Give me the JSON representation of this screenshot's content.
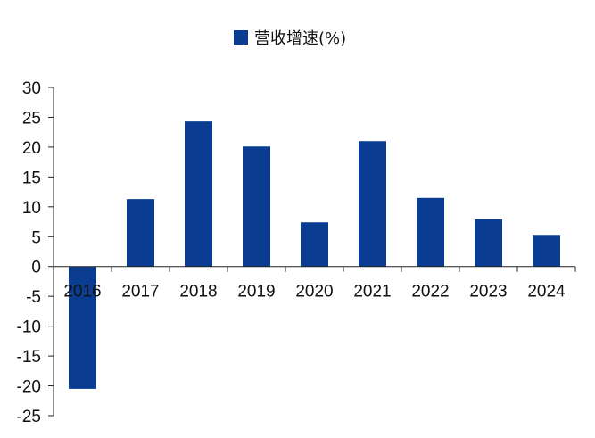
{
  "chart_data": {
    "type": "bar",
    "title": "",
    "xlabel": "",
    "ylabel": "",
    "categories": [
      "2016",
      "2017",
      "2018",
      "2019",
      "2020",
      "2021",
      "2022",
      "2023",
      "2024"
    ],
    "series": [
      {
        "name": "营收增速(%)",
        "values": [
          -20.5,
          11.3,
          24.3,
          20.1,
          7.4,
          21.0,
          11.5,
          7.9,
          5.3
        ],
        "color": "#0a3d91"
      }
    ],
    "ylim": [
      -25,
      30
    ],
    "yticks": [
      30,
      25,
      20,
      15,
      10,
      5,
      0,
      -5,
      -10,
      -15,
      -20,
      -25
    ],
    "grid": false,
    "legend_position": "top-center"
  }
}
